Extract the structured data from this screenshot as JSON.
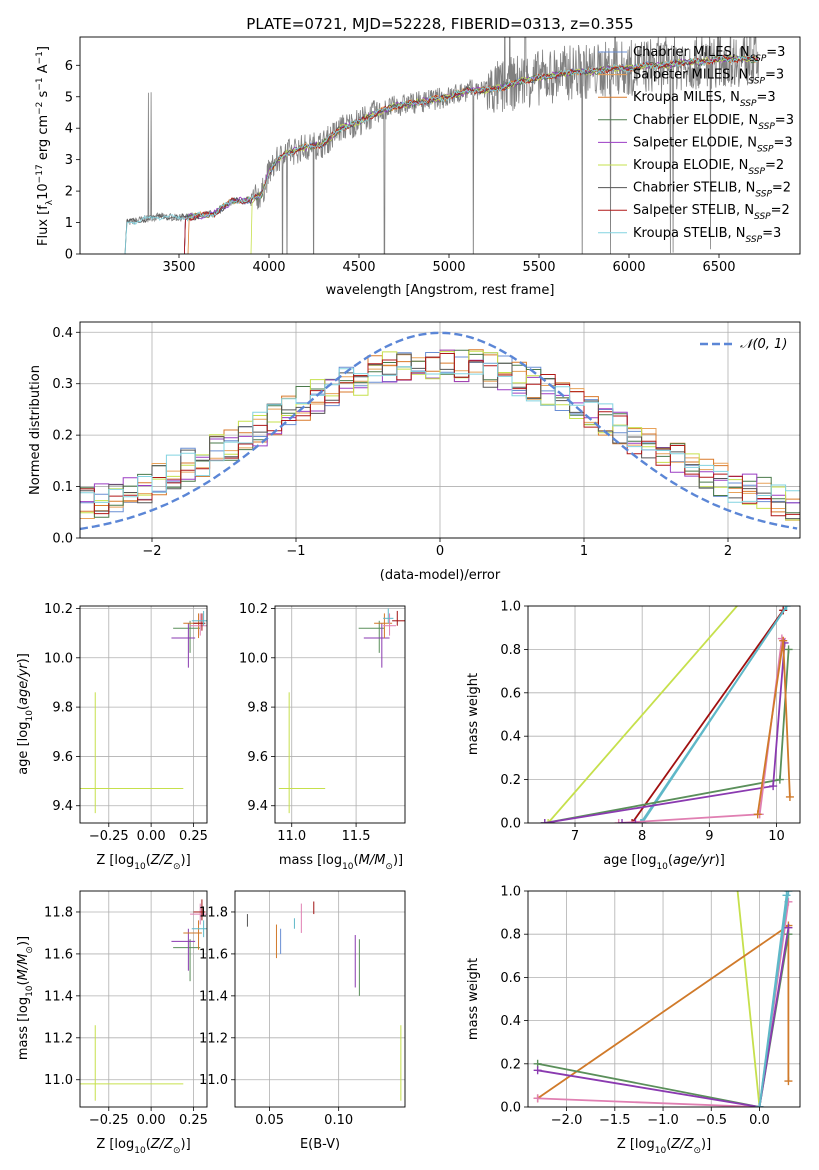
{
  "title": "PLATE=0721, MJD=52228, FIBERID=0313, z=0.355",
  "colors": {
    "chabrier_miles": "#6a8fd4",
    "salpeter_miles": "#e8a25a",
    "kroupa_miles": "#d97a2b",
    "chabrier_elodie": "#4a7a4a",
    "salpeter_elodie": "#9b3dc4",
    "kroupa_elodie": "#c6e04c",
    "chabrier_stelib": "#555555",
    "salpeter_stelib": "#b01818",
    "kroupa_stelib": "#82d3e0",
    "gauss": "#5b86d6",
    "pink": "#e07fb2",
    "green": "#5a8f5a",
    "purple": "#8a3ab0",
    "orange": "#d07a2a",
    "teal": "#5fb8c8",
    "lime": "#c6e04c",
    "red": "#a01010",
    "grid": "#b0b0b0",
    "data": "#808080"
  },
  "chart_data": [
    {
      "type": "line",
      "name": "spectrum",
      "xlabel": "wavelength [Angstrom, rest frame]",
      "ylabel": "Flux [f$_\\lambda$ 10$^{-17}$ erg cm$^{-2}$ s$^{-1}$ A$^{-1}$]",
      "xlim": [
        2950,
        6950
      ],
      "ylim": [
        0,
        6.9
      ],
      "xticks": [
        "3500",
        "4000",
        "4500",
        "5000",
        "5500",
        "6000",
        "6500"
      ],
      "yticks": [
        "0",
        "1",
        "2",
        "3",
        "4",
        "5",
        "6"
      ],
      "grid": false,
      "legend_position": "top-right",
      "legend": [
        {
          "label": "Chabrier MILES, N",
          "sub": "SSP",
          "suffix": "=3",
          "color_key": "chabrier_miles"
        },
        {
          "label": "Salpeter MILES, N",
          "sub": "SSP",
          "suffix": "=3",
          "color_key": "salpeter_miles"
        },
        {
          "label": "Kroupa MILES, N",
          "sub": "SSP",
          "suffix": "=3",
          "color_key": "kroupa_miles"
        },
        {
          "label": "Chabrier ELODIE, N",
          "sub": "SSP",
          "suffix": "=3",
          "color_key": "chabrier_elodie"
        },
        {
          "label": "Salpeter ELODIE, N",
          "sub": "SSP",
          "suffix": "=3",
          "color_key": "salpeter_elodie"
        },
        {
          "label": "Kroupa ELODIE, N",
          "sub": "SSP",
          "suffix": "=2",
          "color_key": "kroupa_elodie"
        },
        {
          "label": "Chabrier STELIB, N",
          "sub": "SSP",
          "suffix": "=2",
          "color_key": "chabrier_stelib"
        },
        {
          "label": "Salpeter STELIB, N",
          "sub": "SSP",
          "suffix": "=2",
          "color_key": "salpeter_stelib"
        },
        {
          "label": "Kroupa STELIB, N",
          "sub": "SSP",
          "suffix": "=3",
          "color_key": "kroupa_stelib"
        }
      ],
      "continuum": [
        [
          3200,
          0.0
        ],
        [
          3210,
          1.0
        ],
        [
          3300,
          1.1
        ],
        [
          3400,
          1.2
        ],
        [
          3500,
          1.15
        ],
        [
          3600,
          1.2
        ],
        [
          3700,
          1.3
        ],
        [
          3800,
          1.7
        ],
        [
          3900,
          1.7
        ],
        [
          3960,
          1.9
        ],
        [
          4000,
          2.6
        ],
        [
          4050,
          3.0
        ],
        [
          4100,
          3.2
        ],
        [
          4200,
          3.4
        ],
        [
          4300,
          3.5
        ],
        [
          4400,
          4.0
        ],
        [
          4500,
          4.2
        ],
        [
          4600,
          4.5
        ],
        [
          4700,
          4.7
        ],
        [
          4800,
          4.8
        ],
        [
          4900,
          4.9
        ],
        [
          5000,
          5.0
        ],
        [
          5100,
          5.2
        ],
        [
          5200,
          5.2
        ],
        [
          5300,
          5.3
        ],
        [
          5400,
          5.5
        ],
        [
          5500,
          5.6
        ],
        [
          5600,
          5.7
        ],
        [
          5700,
          5.8
        ],
        [
          5800,
          5.8
        ],
        [
          5900,
          5.9
        ],
        [
          6000,
          5.9
        ],
        [
          6100,
          6.0
        ],
        [
          6200,
          6.0
        ],
        [
          6300,
          6.1
        ],
        [
          6400,
          6.1
        ],
        [
          6500,
          6.2
        ],
        [
          6600,
          6.2
        ],
        [
          6700,
          6.2
        ]
      ]
    },
    {
      "type": "line",
      "name": "residuals",
      "xlabel": "(data-model)/error",
      "ylabel": "Normed distribution",
      "xlim": [
        -2.5,
        2.5
      ],
      "ylim": [
        0,
        0.42
      ],
      "xticks": [
        -2,
        -1,
        0,
        1,
        2
      ],
      "xtick_labels": [
        "−2",
        "−1",
        "0",
        "1",
        "2"
      ],
      "yticks": [
        0.0,
        0.1,
        0.2,
        0.3,
        0.4
      ],
      "ytick_labels": [
        "0.0",
        "0.1",
        "0.2",
        "0.3",
        "0.4"
      ],
      "grid": true,
      "legend_position": "top-right",
      "gauss_label": "𝒩(0, 1)",
      "hist_bin_width": 0.1
    },
    {
      "type": "scatter",
      "name": "age-vs-Z",
      "xlabel": "Z [log₁₀(Z/Z⊙)]",
      "ylabel": "age  [log₁₀(age/yr)]",
      "xlim": [
        -0.42,
        0.33
      ],
      "ylim": [
        9.33,
        10.21
      ],
      "xticks": [
        -0.25,
        0.0,
        0.25
      ],
      "xtick_labels": [
        "−0.25",
        "0.00",
        "0.25"
      ],
      "yticks": [
        9.4,
        9.6,
        9.8,
        10.0,
        10.2
      ],
      "ytick_labels": [
        "9.4",
        "9.6",
        "9.8",
        "10.0",
        "10.2"
      ],
      "grid": true
    },
    {
      "type": "scatter",
      "name": "age-vs-mass",
      "xlabel": "mass [log₁₀(M/M⊙)]",
      "ylabel": "",
      "xlim": [
        10.87,
        11.88
      ],
      "ylim": [
        9.33,
        10.21
      ],
      "xticks": [
        11.0,
        11.5
      ],
      "xtick_labels": [
        "11.0",
        "11.5"
      ],
      "yticks": [
        9.4,
        9.6,
        9.8,
        10.0,
        10.2
      ],
      "ytick_labels": [
        "9.4",
        "9.6",
        "9.8",
        "10.0",
        "10.2"
      ],
      "grid": true
    },
    {
      "type": "line",
      "name": "mass-weight-vs-age",
      "xlabel": "age  [log₁₀(age/yr)]",
      "ylabel": "mass weight",
      "xlim": [
        6.3,
        10.35
      ],
      "ylim": [
        0,
        1.0
      ],
      "xticks": [
        7,
        8,
        9,
        10
      ],
      "xtick_labels": [
        "7",
        "8",
        "9",
        "10"
      ],
      "yticks": [
        0.0,
        0.2,
        0.4,
        0.6,
        0.8,
        1.0
      ],
      "ytick_labels": [
        "0.0",
        "0.2",
        "0.4",
        "0.6",
        "0.8",
        "1.0"
      ],
      "grid": true
    },
    {
      "type": "scatter",
      "name": "mass-vs-Z",
      "xlabel": "Z [log₁₀(Z/Z⊙)]",
      "ylabel": "mass [log₁₀(M/M⊙)]",
      "xlim": [
        -0.42,
        0.33
      ],
      "ylim": [
        10.87,
        11.9
      ],
      "xticks": [
        -0.25,
        0.0,
        0.25
      ],
      "xtick_labels": [
        "−0.25",
        "0.00",
        "0.25"
      ],
      "yticks": [
        11.0,
        11.2,
        11.4,
        11.6,
        11.8
      ],
      "ytick_labels": [
        "11.0",
        "11.2",
        "11.4",
        "11.6",
        "11.8"
      ],
      "grid": true
    },
    {
      "type": "scatter",
      "name": "mass-vs-ebv",
      "xlabel": "E(B-V)",
      "ylabel": "",
      "xlim": [
        0.025,
        0.148
      ],
      "ylim": [
        10.87,
        11.9
      ],
      "xticks": [
        0.05,
        0.1
      ],
      "xtick_labels": [
        "0.05",
        "0.10"
      ],
      "yticks": [
        11.0,
        11.2,
        11.4,
        11.6,
        11.8
      ],
      "ytick_labels": [
        "11.0",
        "11.2",
        "11.4",
        "11.6",
        "11.8"
      ],
      "grid": true
    },
    {
      "type": "line",
      "name": "mass-weight-vs-Z",
      "xlabel": "Z [log₁₀(Z/Z⊙)]",
      "ylabel": "mass weight",
      "xlim": [
        -2.4,
        0.42
      ],
      "ylim": [
        0,
        1.0
      ],
      "xticks": [
        -2.0,
        -1.5,
        -1.0,
        -0.5,
        0.0
      ],
      "xtick_labels": [
        "−2.0",
        "−1.5",
        "−1.0",
        "−0.5",
        "0.0"
      ],
      "yticks": [
        0.0,
        0.2,
        0.4,
        0.6,
        0.8,
        1.0
      ],
      "ytick_labels": [
        "0.0",
        "0.2",
        "0.4",
        "0.6",
        "0.8",
        "1.0"
      ],
      "grid": true
    }
  ]
}
